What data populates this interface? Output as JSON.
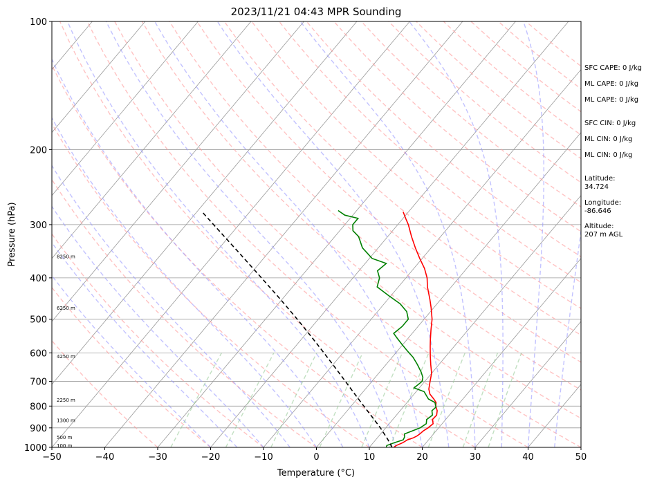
{
  "chart_data": {
    "type": "line",
    "title": "2023/11/21 04:43 MPR Sounding",
    "xlabel": "Temperature (°C)",
    "ylabel": "Pressure (hPa)",
    "xlim": [
      -50,
      50
    ],
    "ylim": [
      1000,
      100
    ],
    "yscale": "log",
    "grid": true,
    "x_ticks": [
      -50,
      -40,
      -30,
      -20,
      -10,
      0,
      10,
      20,
      30,
      40,
      50
    ],
    "x_tick_labels": [
      "−50",
      "−40",
      "−30",
      "−20",
      "−10",
      "0",
      "10",
      "20",
      "30",
      "40",
      "50"
    ],
    "y_ticks": [
      1000,
      900,
      800,
      700,
      600,
      500,
      400,
      300,
      200,
      100
    ],
    "y_tick_labels": [
      "1000",
      "900",
      "800",
      "700",
      "600",
      "500",
      "400",
      "300",
      "200",
      "100"
    ],
    "height_labels": [
      {
        "label": "100 m",
        "pressure": 988
      },
      {
        "label": "500 m",
        "pressure": 946
      },
      {
        "label": "1300 m",
        "pressure": 862
      },
      {
        "label": "2250 m",
        "pressure": 772
      },
      {
        "label": "4250 m",
        "pressure": 610
      },
      {
        "label": "6250 m",
        "pressure": 470
      },
      {
        "label": "8250 m",
        "pressure": 356
      }
    ],
    "series": [
      {
        "color": "#ff0000",
        "points": [
          [
            1000,
            14.6
          ],
          [
            990,
            14.8
          ],
          [
            975,
            15.6
          ],
          [
            960,
            16.0
          ],
          [
            950,
            16.8
          ],
          [
            940,
            17.2
          ],
          [
            930,
            17.4
          ],
          [
            915,
            17.6
          ],
          [
            900,
            18.0
          ],
          [
            880,
            18.3
          ],
          [
            860,
            17.5
          ],
          [
            840,
            17.6
          ],
          [
            820,
            17.0
          ],
          [
            800,
            16.0
          ],
          [
            785,
            15.5
          ],
          [
            770,
            14.5
          ],
          [
            750,
            13.0
          ],
          [
            730,
            12.0
          ],
          [
            700,
            11.0
          ],
          [
            670,
            10.0
          ],
          [
            640,
            8.5
          ],
          [
            610,
            7.0
          ],
          [
            580,
            5.5
          ],
          [
            560,
            4.5
          ],
          [
            530,
            3.0
          ],
          [
            500,
            1.5
          ],
          [
            470,
            -0.5
          ],
          [
            450,
            -2.0
          ],
          [
            420,
            -4.5
          ],
          [
            400,
            -6.0
          ],
          [
            380,
            -8.0
          ],
          [
            360,
            -10.5
          ],
          [
            340,
            -13.0
          ],
          [
            320,
            -15.5
          ],
          [
            300,
            -18.0
          ],
          [
            290,
            -19.5
          ],
          [
            280,
            -21.0
          ]
        ]
      },
      {
        "color": "#008000",
        "points": [
          [
            1000,
            13.2
          ],
          [
            990,
            13.0
          ],
          [
            975,
            14.0
          ],
          [
            960,
            15.2
          ],
          [
            945,
            15.0
          ],
          [
            930,
            14.5
          ],
          [
            915,
            15.5
          ],
          [
            900,
            16.5
          ],
          [
            880,
            17.0
          ],
          [
            860,
            16.4
          ],
          [
            840,
            16.8
          ],
          [
            820,
            16.0
          ],
          [
            805,
            16.2
          ],
          [
            785,
            15.3
          ],
          [
            770,
            13.5
          ],
          [
            740,
            11.5
          ],
          [
            725,
            9.0
          ],
          [
            700,
            9.5
          ],
          [
            685,
            9.0
          ],
          [
            665,
            7.8
          ],
          [
            640,
            6.0
          ],
          [
            615,
            4.0
          ],
          [
            595,
            2.0
          ],
          [
            575,
            0.0
          ],
          [
            555,
            -2.0
          ],
          [
            540,
            -3.5
          ],
          [
            520,
            -3.0
          ],
          [
            500,
            -3.0
          ],
          [
            480,
            -4.5
          ],
          [
            460,
            -7.0
          ],
          [
            440,
            -10.5
          ],
          [
            420,
            -14.0
          ],
          [
            400,
            -15.0
          ],
          [
            385,
            -16.5
          ],
          [
            370,
            -16.0
          ],
          [
            360,
            -19.5
          ],
          [
            340,
            -23.0
          ],
          [
            320,
            -25.5
          ],
          [
            310,
            -27.5
          ],
          [
            300,
            -28.5
          ],
          [
            290,
            -28.5
          ],
          [
            285,
            -31.5
          ],
          [
            278,
            -33.5
          ]
        ]
      },
      {
        "color": "#000000",
        "points": [
          [
            1000,
            14.3
          ],
          [
            975,
            13.1
          ],
          [
            950,
            11.8
          ],
          [
            925,
            10.4
          ],
          [
            900,
            9.0
          ],
          [
            850,
            5.8
          ],
          [
            800,
            2.4
          ],
          [
            750,
            -1.2
          ],
          [
            700,
            -5.0
          ],
          [
            650,
            -9.1
          ],
          [
            600,
            -13.6
          ],
          [
            550,
            -18.5
          ],
          [
            500,
            -24.0
          ],
          [
            450,
            -30.2
          ],
          [
            400,
            -37.3
          ],
          [
            350,
            -45.4
          ],
          [
            300,
            -54.8
          ],
          [
            280,
            -59.0
          ]
        ]
      }
    ]
  },
  "stats": {
    "sfc_cape": "SFC CAPE: 0 J/kg",
    "ml_cape_1": "ML CAPE: 0 J/kg",
    "ml_cape_2": "ML CAPE: 0 J/kg",
    "sfc_cin": "SFC CIN: 0 J/kg",
    "ml_cin_1": "ML CIN: 0 J/kg",
    "ml_cin_2": "ML CIN: 0 J/kg",
    "latitude": "Latitude:\n34.724",
    "longitude": "Longitude:\n-86.646",
    "altitude": "Altitude:\n207 m AGL"
  },
  "colors": {
    "temperature": "#ff0000",
    "dewpoint": "#008000",
    "parcel": "#000000",
    "dry_adiabat": "#ff9999",
    "moist_adiabat": "#9999ff",
    "mixing_ratio": "#99cc99",
    "isotherm": "#999999"
  }
}
